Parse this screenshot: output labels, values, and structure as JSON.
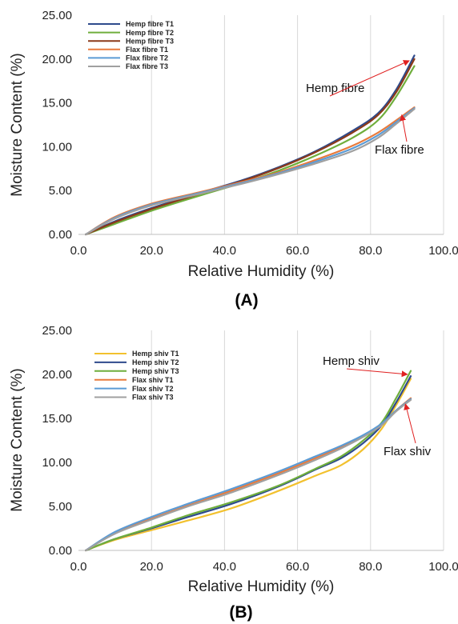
{
  "chart_data": [
    {
      "type": "line",
      "panel_label": "(A)",
      "xlabel": "Relative Humidity (%)",
      "ylabel": "Moisture Content (%)",
      "xlim": [
        0,
        100
      ],
      "ylim": [
        0,
        25
      ],
      "x_ticks": [
        "0.0",
        "20.0",
        "40.0",
        "60.0",
        "80.0",
        "100.0"
      ],
      "y_ticks": [
        "0.00",
        "5.00",
        "10.00",
        "15.00",
        "20.00",
        "25.00"
      ],
      "grid": "vertical",
      "legend_position": "top-left",
      "series": [
        {
          "name": "Hemp fibre T1",
          "color": "#2E4A8C",
          "x": [
            2,
            10,
            20,
            33,
            45,
            55,
            65,
            75,
            82,
            87,
            92
          ],
          "y": [
            0,
            1.5,
            3.0,
            4.7,
            6.2,
            7.7,
            9.5,
            11.8,
            13.8,
            16.5,
            20.4
          ]
        },
        {
          "name": "Hemp fibre T2",
          "color": "#6FAE3C",
          "x": [
            2,
            10,
            20,
            33,
            45,
            55,
            65,
            75,
            82,
            87,
            92
          ],
          "y": [
            0,
            1.2,
            2.7,
            4.4,
            5.9,
            7.3,
            9.0,
            11.0,
            13.0,
            15.7,
            19.2
          ]
        },
        {
          "name": "Hemp fibre T3",
          "color": "#8B3A1A",
          "x": [
            2,
            10,
            20,
            33,
            45,
            55,
            65,
            75,
            82,
            87,
            92
          ],
          "y": [
            0,
            1.4,
            2.9,
            4.6,
            6.1,
            7.6,
            9.4,
            11.6,
            13.6,
            16.2,
            20.0
          ]
        },
        {
          "name": "Flax fibre T1",
          "color": "#E87A3C",
          "x": [
            2,
            10,
            20,
            33,
            45,
            55,
            65,
            75,
            82,
            87,
            92
          ],
          "y": [
            0,
            2.0,
            3.5,
            4.8,
            6.0,
            7.1,
            8.5,
            10.1,
            11.6,
            13.0,
            14.5
          ]
        },
        {
          "name": "Flax fibre T2",
          "color": "#5B9BD5",
          "x": [
            2,
            10,
            20,
            33,
            45,
            55,
            65,
            75,
            82,
            87,
            92
          ],
          "y": [
            0,
            1.9,
            3.4,
            4.7,
            5.9,
            7.0,
            8.3,
            9.8,
            11.3,
            12.8,
            14.4
          ]
        },
        {
          "name": "Flax fibre T3",
          "color": "#A0A0A0",
          "x": [
            2,
            10,
            20,
            33,
            45,
            55,
            65,
            75,
            82,
            87,
            92
          ],
          "y": [
            0,
            1.8,
            3.3,
            4.6,
            5.8,
            6.9,
            8.1,
            9.5,
            11.0,
            12.6,
            14.3
          ]
        }
      ],
      "annotations": [
        {
          "text": "Hemp fibre",
          "target": [
            91,
            19.9
          ]
        },
        {
          "text": "Flax fibre",
          "target": [
            89,
            13.8
          ]
        }
      ]
    },
    {
      "type": "line",
      "panel_label": "(B)",
      "xlabel": "Relative Humidity (%)",
      "ylabel": "Moisture Content (%)",
      "xlim": [
        0,
        100
      ],
      "ylim": [
        0,
        25
      ],
      "x_ticks": [
        "0.0",
        "20.0",
        "40.0",
        "60.0",
        "80.0",
        "100.0"
      ],
      "y_ticks": [
        "0.00",
        "5.00",
        "10.00",
        "15.00",
        "20.00",
        "25.00"
      ],
      "grid": "vertical",
      "legend_position": "top-left",
      "series": [
        {
          "name": "Hemp shiv T1",
          "color": "#F2C12E",
          "x": [
            2,
            10,
            20,
            30,
            42,
            55,
            65,
            72,
            78,
            83,
            87,
            91
          ],
          "y": [
            0,
            1.2,
            2.3,
            3.4,
            4.8,
            6.8,
            8.5,
            9.7,
            11.5,
            13.8,
            16.5,
            19.5
          ]
        },
        {
          "name": "Hemp shiv T2",
          "color": "#2E4A8C",
          "x": [
            2,
            10,
            20,
            30,
            42,
            55,
            65,
            72,
            78,
            83,
            87,
            91
          ],
          "y": [
            0,
            1.3,
            2.5,
            3.8,
            5.3,
            7.3,
            9.2,
            10.5,
            12.2,
            14.2,
            16.8,
            19.8
          ]
        },
        {
          "name": "Hemp shiv T3",
          "color": "#6FAE3C",
          "x": [
            2,
            10,
            20,
            30,
            42,
            55,
            65,
            72,
            78,
            83,
            87,
            91
          ],
          "y": [
            0,
            1.3,
            2.6,
            4.0,
            5.5,
            7.4,
            9.3,
            10.7,
            12.5,
            14.5,
            17.3,
            20.4
          ]
        },
        {
          "name": "Flax shiv T1",
          "color": "#E87A3C",
          "x": [
            2,
            10,
            20,
            30,
            42,
            55,
            65,
            72,
            78,
            83,
            87,
            91
          ],
          "y": [
            0,
            2.0,
            3.6,
            5.1,
            6.8,
            8.8,
            10.5,
            11.8,
            13.0,
            14.3,
            15.9,
            17.3
          ]
        },
        {
          "name": "Flax shiv T2",
          "color": "#5B9BD5",
          "x": [
            2,
            10,
            20,
            30,
            42,
            55,
            65,
            72,
            78,
            83,
            87,
            91
          ],
          "y": [
            0,
            2.1,
            3.8,
            5.3,
            7.0,
            9.0,
            10.7,
            11.9,
            13.1,
            14.4,
            15.9,
            17.2
          ]
        },
        {
          "name": "Flax shiv T3",
          "color": "#A0A0A0",
          "x": [
            2,
            10,
            20,
            30,
            42,
            55,
            65,
            72,
            78,
            83,
            87,
            91
          ],
          "y": [
            0,
            1.9,
            3.5,
            5.0,
            6.6,
            8.6,
            10.3,
            11.6,
            12.9,
            14.2,
            15.8,
            17.1
          ]
        }
      ],
      "annotations": [
        {
          "text": "Hemp shiv",
          "target": [
            90.5,
            20.1
          ]
        },
        {
          "text": "Flax shiv",
          "target": [
            90,
            16.8
          ]
        }
      ]
    }
  ]
}
